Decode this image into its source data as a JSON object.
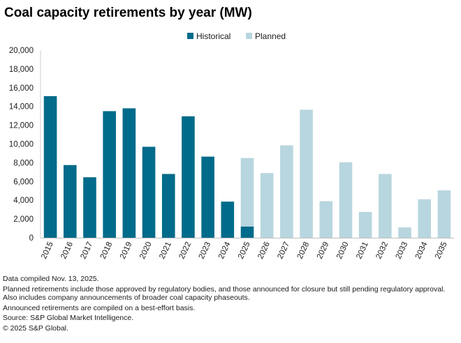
{
  "title": "Coal capacity retirements by year (MW)",
  "notes": [
    "Data compiled Nov. 13, 2025.",
    "Planned retirements include those approved by regulatory bodies, and those announced for closure but still pending regulatory approval. Also includes company announcements of broader coal capacity phaseouts.",
    "Announced retirements are compiled on a best-effort basis.",
    "Source: S&P Global Market Intelligence.",
    "© 2025 S&P Global."
  ],
  "chart_data": {
    "type": "bar",
    "stacked": true,
    "title": "Coal capacity retirements by year (MW)",
    "xlabel": "",
    "ylabel": "",
    "ylim": [
      0,
      20000
    ],
    "yticks": [
      0,
      2000,
      4000,
      6000,
      8000,
      10000,
      12000,
      14000,
      16000,
      18000,
      20000
    ],
    "ytick_labels": [
      "0",
      "2,000",
      "4,000",
      "6,000",
      "8,000",
      "10,000",
      "12,000",
      "14,000",
      "16,000",
      "18,000",
      "20,000"
    ],
    "grid": false,
    "legend_position": "top-center",
    "categories": [
      "2015",
      "2016",
      "2017",
      "2018",
      "2019",
      "2020",
      "2021",
      "2022",
      "2023",
      "2024",
      "2025",
      "2026",
      "2027",
      "2028",
      "2029",
      "2030",
      "2031",
      "2032",
      "2033",
      "2034",
      "2035"
    ],
    "series": [
      {
        "name": "Historical",
        "color": "#006b8a",
        "values": [
          15100,
          7750,
          6450,
          13500,
          13800,
          9700,
          6800,
          12950,
          8650,
          3850,
          1200,
          0,
          0,
          0,
          0,
          0,
          0,
          0,
          0,
          0,
          0
        ]
      },
      {
        "name": "Planned",
        "color": "#b8d6df",
        "values": [
          0,
          0,
          0,
          0,
          0,
          0,
          0,
          0,
          0,
          0,
          7300,
          6900,
          9850,
          13650,
          3900,
          8050,
          2750,
          6800,
          1100,
          4100,
          5050
        ]
      }
    ]
  }
}
